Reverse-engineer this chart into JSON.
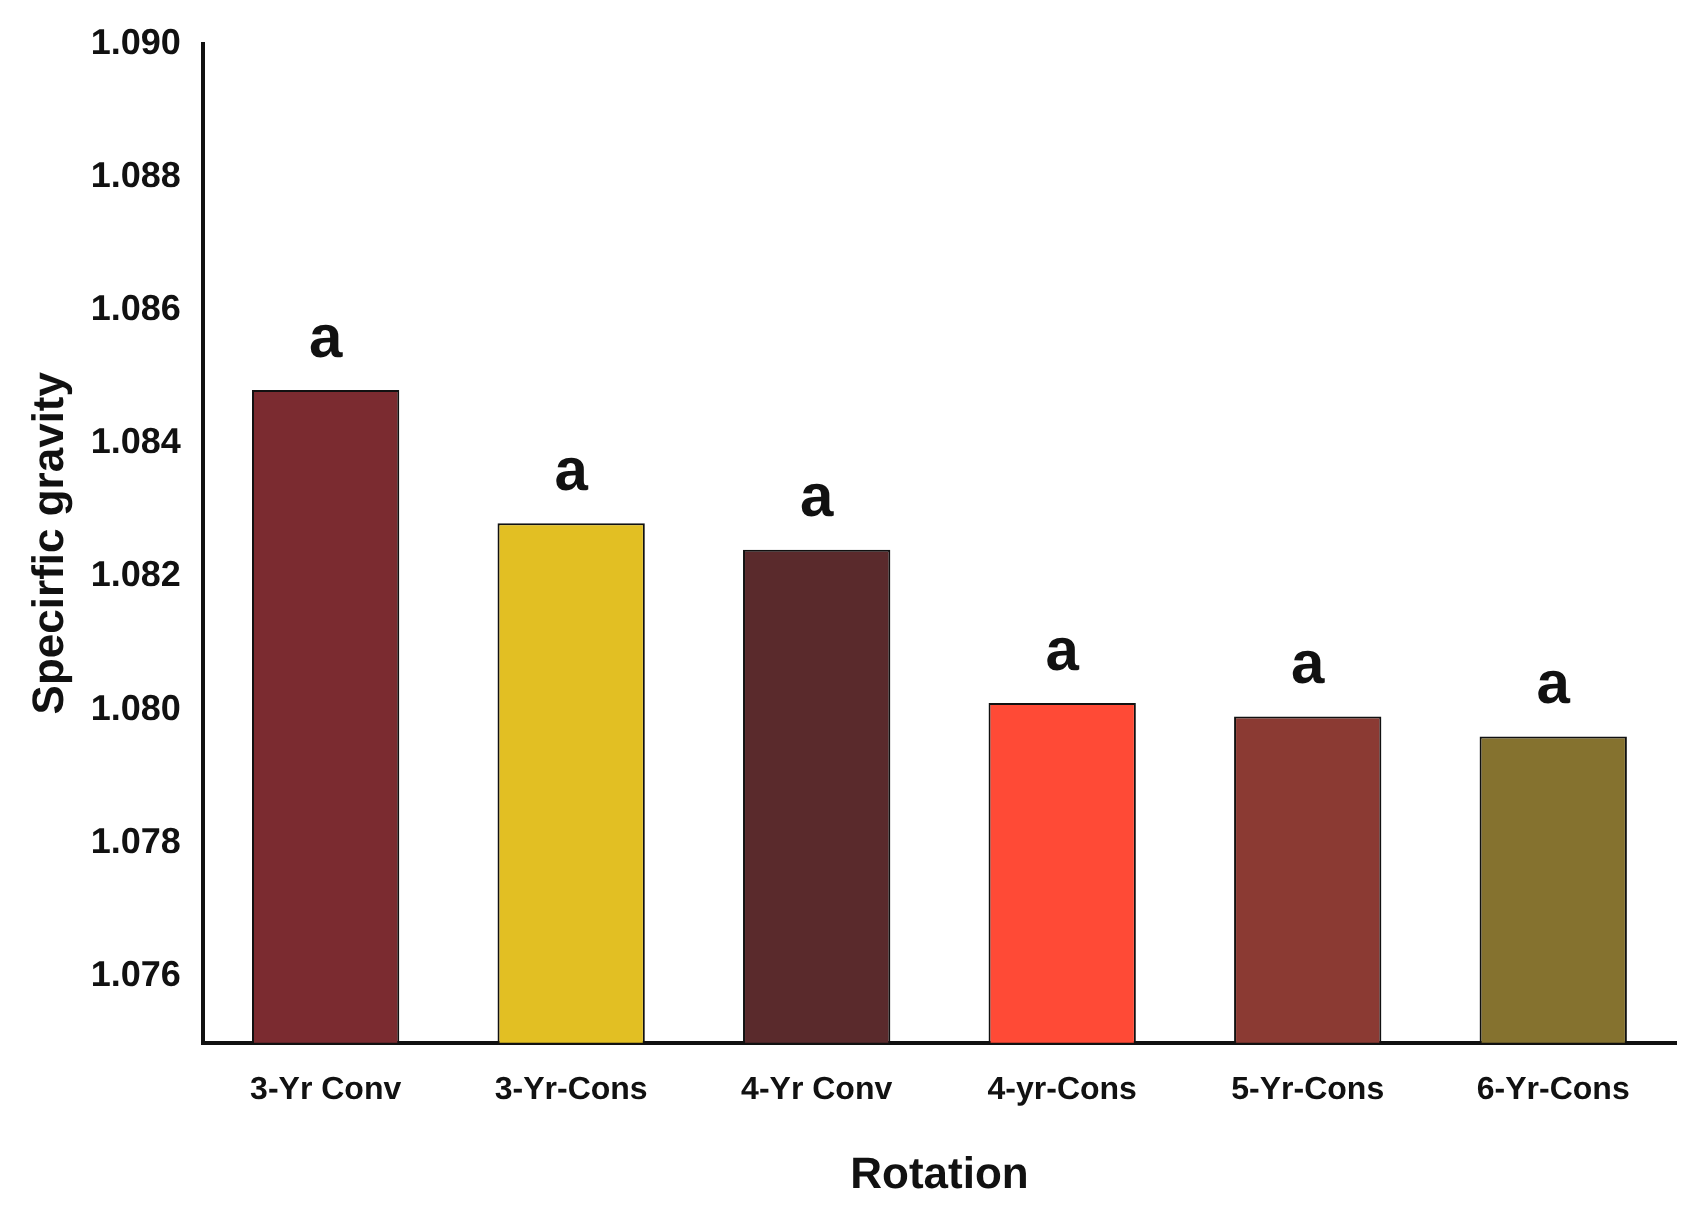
{
  "chart_data": {
    "type": "bar",
    "xlabel": "Rotation",
    "ylabel": "Specirfic gravity",
    "categories": [
      "3-Yr Conv",
      "3-Yr-Cons",
      "4-Yr Conv",
      "4-yr-Cons",
      "5-Yr-Cons",
      "6-Yr-Cons"
    ],
    "values": [
      1.0848,
      1.0828,
      1.0824,
      1.0801,
      1.0799,
      1.0796
    ],
    "colors": [
      "#7b2b30",
      "#e2bf23",
      "#5a2a2c",
      "#ff4a36",
      "#8b3a33",
      "#85722f"
    ],
    "ylim": [
      1.075,
      1.09
    ],
    "yticks": [
      {
        "value": 1.076,
        "label": "1.076"
      },
      {
        "value": 1.078,
        "label": "1.078"
      },
      {
        "value": 1.08,
        "label": "1.080"
      },
      {
        "value": 1.082,
        "label": "1.082"
      },
      {
        "value": 1.084,
        "label": "1.084"
      },
      {
        "value": 1.086,
        "label": "1.086"
      },
      {
        "value": 1.088,
        "label": "1.088"
      },
      {
        "value": 1.09,
        "label": "1.090"
      }
    ],
    "grid": false,
    "legend": false,
    "annotations": [
      {
        "text": "a",
        "x": "3-Yr Conv",
        "y": 1.0848
      },
      {
        "text": "a",
        "x": "3-Yr-Cons",
        "y": 1.0828
      },
      {
        "text": "a",
        "x": "4-Yr Conv",
        "y": 1.0824
      },
      {
        "text": "a",
        "x": "4-yr-Cons",
        "y": 1.0801
      },
      {
        "text": "a",
        "x": "5-Yr-Cons",
        "y": 1.0799
      },
      {
        "text": "a",
        "x": "6-Yr-Cons",
        "y": 1.0796
      }
    ]
  }
}
